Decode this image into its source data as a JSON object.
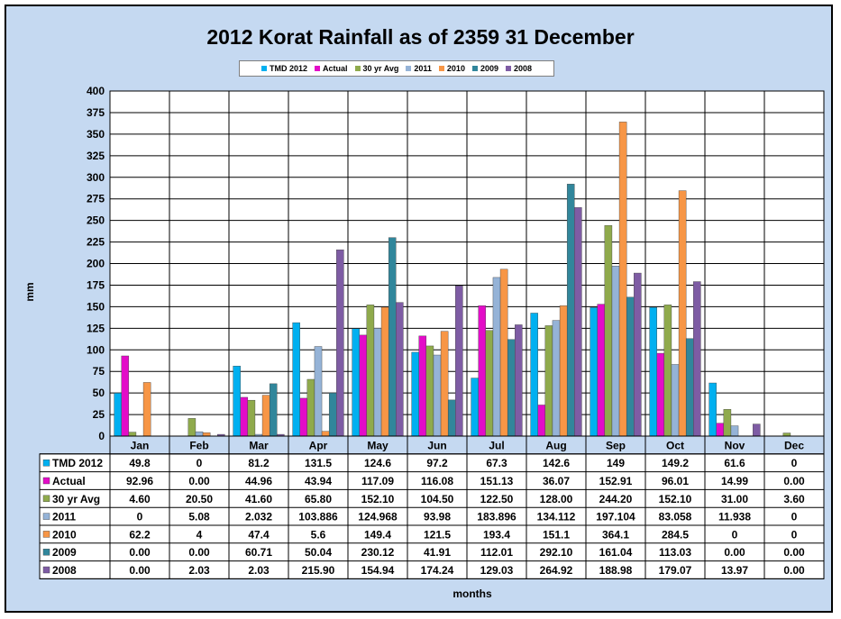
{
  "chart_data": {
    "type": "bar",
    "title": "2012 Korat Rainfall as of 2359 31 December",
    "xlabel": "months",
    "ylabel": "mm",
    "ylim": [
      0,
      400
    ],
    "yticks": [
      0,
      25,
      50,
      75,
      100,
      125,
      150,
      175,
      200,
      225,
      250,
      275,
      300,
      325,
      350,
      375,
      400
    ],
    "grid": true,
    "legend": "top",
    "categories": [
      "Jan",
      "Feb",
      "Mar",
      "Apr",
      "May",
      "Jun",
      "Jul",
      "Aug",
      "Sep",
      "Oct",
      "Nov",
      "Dec"
    ],
    "series": [
      {
        "name": "TMD 2012",
        "color": "#00b0f0",
        "values": [
          49.8,
          0,
          81.2,
          131.5,
          124.6,
          97.2,
          67.3,
          142.6,
          149,
          149.2,
          61.6,
          0
        ],
        "labels": [
          "49.8",
          "0",
          "81.2",
          "131.5",
          "124.6",
          "97.2",
          "67.3",
          "142.6",
          "149",
          "149.2",
          "61.6",
          "0"
        ]
      },
      {
        "name": "Actual",
        "color": "#e30cc8",
        "values": [
          92.96,
          0.0,
          44.96,
          43.94,
          117.09,
          116.08,
          151.13,
          36.07,
          152.91,
          96.01,
          14.99,
          0.0
        ],
        "labels": [
          "92.96",
          "0.00",
          "44.96",
          "43.94",
          "117.09",
          "116.08",
          "151.13",
          "36.07",
          "152.91",
          "96.01",
          "14.99",
          "0.00"
        ]
      },
      {
        "name": "30 yr Avg",
        "color": "#8faa4c",
        "values": [
          4.6,
          20.5,
          41.6,
          65.8,
          152.1,
          104.5,
          122.5,
          128.0,
          244.2,
          152.1,
          31.0,
          3.6
        ],
        "labels": [
          "4.60",
          "20.50",
          "41.60",
          "65.80",
          "152.10",
          "104.50",
          "122.50",
          "128.00",
          "244.20",
          "152.10",
          "31.00",
          "3.60"
        ]
      },
      {
        "name": "2011",
        "color": "#95b3d7",
        "values": [
          0,
          5.08,
          2.032,
          103.886,
          124.968,
          93.98,
          183.896,
          134.112,
          197.104,
          83.058,
          11.938,
          0
        ],
        "labels": [
          "0",
          "5.08",
          "2.032",
          "103.886",
          "124.968",
          "93.98",
          "183.896",
          "134.112",
          "197.104",
          "83.058",
          "11.938",
          "0"
        ]
      },
      {
        "name": "2010",
        "color": "#f79646",
        "values": [
          62.2,
          4,
          47.4,
          5.6,
          149.4,
          121.5,
          193.4,
          151.1,
          364.1,
          284.5,
          0,
          0
        ],
        "labels": [
          "62.2",
          "4",
          "47.4",
          "5.6",
          "149.4",
          "121.5",
          "193.4",
          "151.1",
          "364.1",
          "284.5",
          "0",
          "0"
        ]
      },
      {
        "name": "2009",
        "color": "#31869b",
        "values": [
          0.0,
          0.0,
          60.71,
          50.04,
          230.12,
          41.91,
          112.01,
          292.1,
          161.04,
          113.03,
          0.0,
          0.0
        ],
        "labels": [
          "0.00",
          "0.00",
          "60.71",
          "50.04",
          "230.12",
          "41.91",
          "112.01",
          "292.10",
          "161.04",
          "113.03",
          "0.00",
          "0.00"
        ]
      },
      {
        "name": "2008",
        "color": "#7e5ca4",
        "values": [
          0.0,
          2.03,
          2.03,
          215.9,
          154.94,
          174.24,
          129.03,
          264.92,
          188.98,
          179.07,
          13.97,
          0.0
        ],
        "labels": [
          "0.00",
          "2.03",
          "2.03",
          "215.90",
          "154.94",
          "174.24",
          "129.03",
          "264.92",
          "188.98",
          "179.07",
          "13.97",
          "0.00"
        ]
      }
    ]
  }
}
